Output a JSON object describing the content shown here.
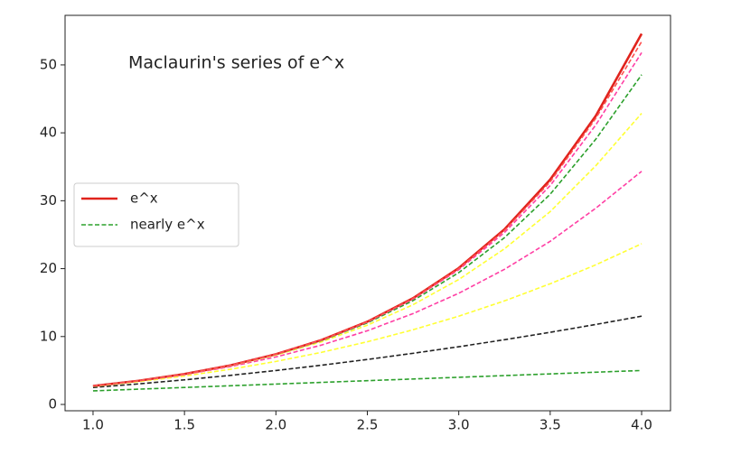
{
  "chart_data": {
    "type": "line",
    "title": "Maclaurin's series of e^x",
    "x": [
      1.0,
      1.25,
      1.5,
      1.75,
      2.0,
      2.25,
      2.5,
      2.75,
      3.0,
      3.25,
      3.5,
      3.75,
      4.0
    ],
    "series": [
      {
        "name": "e^x",
        "color": "#e0231c",
        "dashed": false,
        "values": [
          2.718,
          3.49,
          4.482,
          5.755,
          7.389,
          9.488,
          12.182,
          15.643,
          20.086,
          25.79,
          33.115,
          42.521,
          54.598
        ]
      },
      {
        "name": "nearly e^x",
        "color": "#2ca02c",
        "dashed": true,
        "values": [
          2,
          2.25,
          2.5,
          2.75,
          3,
          3.25,
          3.5,
          3.75,
          4,
          4.25,
          4.5,
          4.75,
          5
        ]
      },
      {
        "color": "#222222",
        "dashed": true,
        "values": [
          2.5,
          3.031,
          3.625,
          4.281,
          5,
          5.781,
          6.625,
          7.531,
          8.5,
          9.531,
          10.625,
          11.781,
          13
        ]
      },
      {
        "color": "#ffff33",
        "dashed": true,
        "values": [
          2.667,
          3.357,
          4.188,
          5.174,
          6.333,
          7.679,
          9.229,
          10.997,
          13,
          15.252,
          17.771,
          20.57,
          23.667
        ]
      },
      {
        "color": "#ff3fa4",
        "dashed": true,
        "values": [
          2.708,
          3.459,
          4.399,
          5.565,
          7,
          8.747,
          10.857,
          13.38,
          16.375,
          19.901,
          24.024,
          28.914,
          34.333
        ]
      },
      {
        "color": "#ffff33",
        "dashed": true,
        "values": [
          2.717,
          3.484,
          4.462,
          5.702,
          7.267,
          9.228,
          11.671,
          14.691,
          18.4,
          22.923,
          28.401,
          35.172,
          42.867
        ]
      },
      {
        "color": "#2ca02c",
        "dashed": true,
        "values": [
          2.718,
          3.489,
          4.478,
          5.742,
          7.356,
          9.408,
          12.01,
          15.292,
          19.413,
          24.56,
          30.954,
          39.084,
          48.556
        ]
      },
      {
        "color": "#ff3fa4",
        "dashed": true,
        "values": [
          2.718,
          3.49,
          4.481,
          5.752,
          7.381,
          9.466,
          12.131,
          15.528,
          19.847,
          25.32,
          32.231,
          41.18,
          51.807
        ]
      },
      {
        "color": "#ff5050",
        "dashed": true,
        "values": [
          2.718,
          3.49,
          4.482,
          5.754,
          7.387,
          9.482,
          12.169,
          15.609,
          20.01,
          25.629,
          32.789,
          42.162,
          53.432
        ]
      }
    ],
    "xlim": [
      0.847,
      4.158
    ],
    "ylim": [
      -0.93,
      57.3
    ],
    "xticks": [
      {
        "value": 1,
        "label": "1.0"
      },
      1.5,
      {
        "value": 2,
        "label": "2.0"
      },
      2.5,
      {
        "value": 3,
        "label": "3.0"
      },
      3.5,
      {
        "value": 4,
        "label": "4.0"
      }
    ],
    "yticks": [
      0,
      10,
      20,
      30,
      40,
      50
    ],
    "legend": "center-left"
  }
}
